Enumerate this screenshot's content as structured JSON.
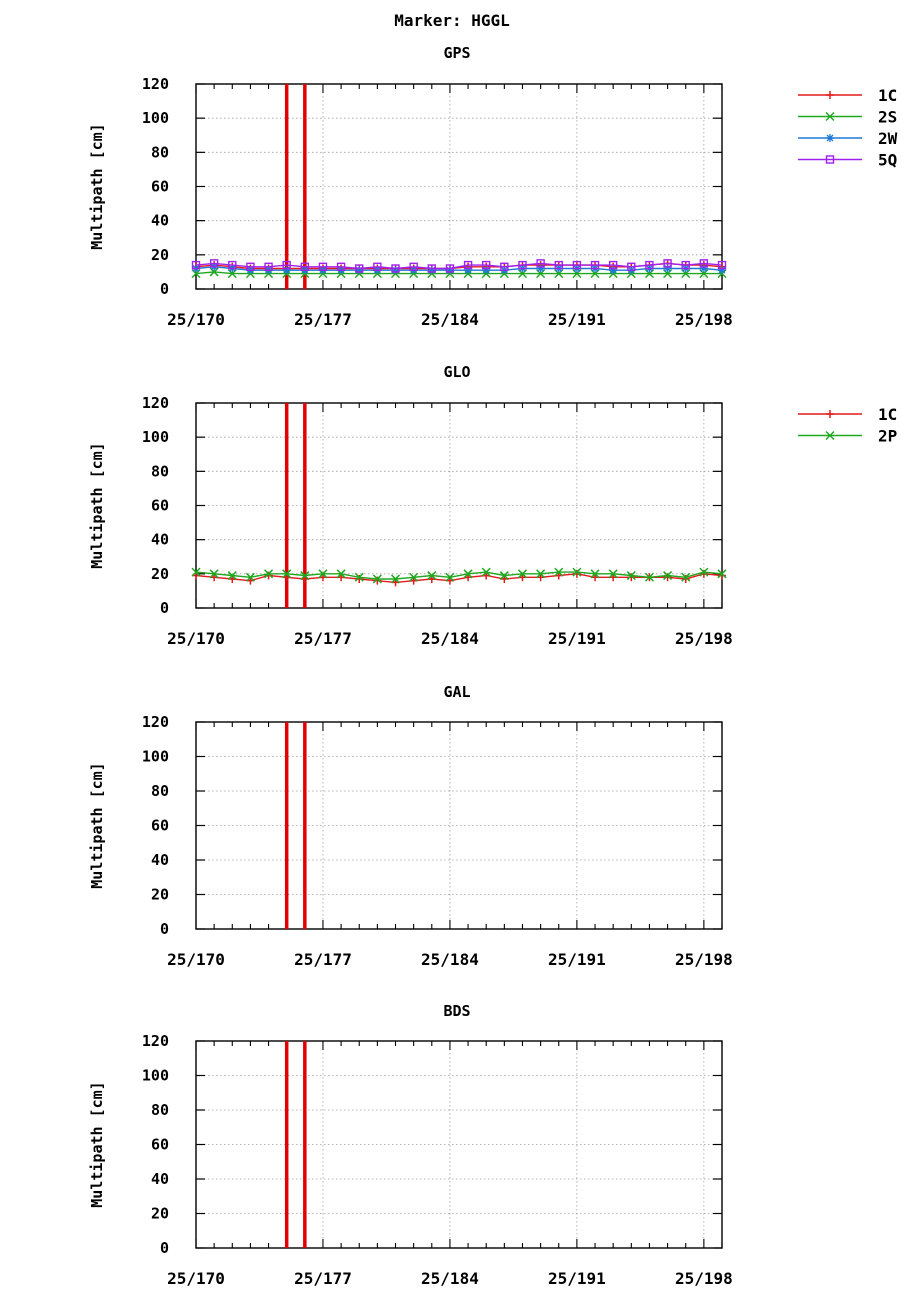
{
  "title": "Marker: HGGL",
  "colors": {
    "1C": "#e41a1c",
    "2S": "#1fa81f",
    "2W": "#1f78d8",
    "5Q": "#a020f0",
    "2P": "#1fa81f",
    "gap_marker": "#e00000",
    "grid": "#a0a0a0",
    "axis": "#000000"
  },
  "chart_data": [
    {
      "type": "line",
      "title": "GPS",
      "ylabel": "Multipath [cm]",
      "xlabel": "",
      "xlim": [
        170,
        199
      ],
      "ylim": [
        0,
        120
      ],
      "yticks": [
        0,
        20,
        40,
        60,
        80,
        100,
        120
      ],
      "xticks": [
        170,
        177,
        184,
        191,
        198
      ],
      "xtick_labels": [
        "25/170",
        "25/177",
        "25/184",
        "25/191",
        "25/198"
      ],
      "grid": true,
      "legend_position": "right",
      "vertical_markers": [
        175,
        176
      ],
      "x": [
        170,
        171,
        172,
        173,
        174,
        175,
        176,
        177,
        178,
        179,
        180,
        181,
        182,
        183,
        184,
        185,
        186,
        187,
        188,
        189,
        190,
        191,
        192,
        193,
        194,
        195,
        196,
        197,
        198,
        199
      ],
      "series": [
        {
          "name": "1C",
          "marker": "plus",
          "values": [
            13,
            14,
            13,
            12,
            12,
            12,
            12,
            12,
            12,
            12,
            12,
            12,
            12,
            12,
            12,
            13,
            13,
            13,
            14,
            14,
            14,
            14,
            14,
            13,
            13,
            14,
            15,
            14,
            14,
            13
          ]
        },
        {
          "name": "2S",
          "marker": "x",
          "values": [
            9,
            10,
            9,
            9,
            9,
            9,
            9,
            9,
            9,
            9,
            9,
            9,
            9,
            9,
            9,
            9,
            9,
            9,
            9,
            9,
            9,
            9,
            9,
            9,
            9,
            9,
            9,
            9,
            9,
            9
          ]
        },
        {
          "name": "2W",
          "marker": "star",
          "values": [
            12,
            13,
            12,
            11,
            11,
            11,
            11,
            11,
            11,
            11,
            11,
            11,
            11,
            11,
            11,
            11,
            11,
            11,
            12,
            12,
            12,
            12,
            12,
            11,
            11,
            12,
            12,
            12,
            12,
            11
          ]
        },
        {
          "name": "5Q",
          "marker": "square",
          "values": [
            14,
            15,
            14,
            13,
            13,
            14,
            13,
            13,
            13,
            12,
            13,
            12,
            13,
            12,
            12,
            14,
            14,
            13,
            14,
            15,
            14,
            14,
            14,
            14,
            13,
            14,
            15,
            14,
            15,
            14
          ]
        }
      ]
    },
    {
      "type": "line",
      "title": "GLO",
      "ylabel": "Multipath [cm]",
      "xlabel": "",
      "xlim": [
        170,
        199
      ],
      "ylim": [
        0,
        120
      ],
      "yticks": [
        0,
        20,
        40,
        60,
        80,
        100,
        120
      ],
      "xticks": [
        170,
        177,
        184,
        191,
        198
      ],
      "xtick_labels": [
        "25/170",
        "25/177",
        "25/184",
        "25/191",
        "25/198"
      ],
      "grid": true,
      "legend_position": "right",
      "vertical_markers": [
        175,
        176
      ],
      "x": [
        170,
        171,
        172,
        173,
        174,
        175,
        176,
        177,
        178,
        179,
        180,
        181,
        182,
        183,
        184,
        185,
        186,
        187,
        188,
        189,
        190,
        191,
        192,
        193,
        194,
        195,
        196,
        197,
        198,
        199
      ],
      "series": [
        {
          "name": "1C",
          "marker": "plus",
          "values": [
            19,
            18,
            17,
            16,
            19,
            18,
            17,
            18,
            18,
            17,
            16,
            15,
            16,
            17,
            16,
            18,
            19,
            17,
            18,
            18,
            19,
            20,
            18,
            18,
            18,
            18,
            18,
            17,
            20,
            19
          ]
        },
        {
          "name": "2P",
          "marker": "x",
          "values": [
            21,
            20,
            19,
            18,
            20,
            20,
            19,
            20,
            20,
            18,
            17,
            17,
            18,
            19,
            18,
            20,
            21,
            19,
            20,
            20,
            21,
            21,
            20,
            20,
            19,
            18,
            19,
            18,
            21,
            20
          ]
        }
      ]
    },
    {
      "type": "line",
      "title": "GAL",
      "ylabel": "Multipath [cm]",
      "xlabel": "",
      "xlim": [
        170,
        199
      ],
      "ylim": [
        0,
        120
      ],
      "yticks": [
        0,
        20,
        40,
        60,
        80,
        100,
        120
      ],
      "xticks": [
        170,
        177,
        184,
        191,
        198
      ],
      "xtick_labels": [
        "25/170",
        "25/177",
        "25/184",
        "25/191",
        "25/198"
      ],
      "grid": true,
      "legend_position": "right",
      "vertical_markers": [
        175,
        176
      ],
      "x": [],
      "series": []
    },
    {
      "type": "line",
      "title": "BDS",
      "ylabel": "Multipath [cm]",
      "xlabel": "",
      "xlim": [
        170,
        199
      ],
      "ylim": [
        0,
        120
      ],
      "yticks": [
        0,
        20,
        40,
        60,
        80,
        100,
        120
      ],
      "xticks": [
        170,
        177,
        184,
        191,
        198
      ],
      "xtick_labels": [
        "25/170",
        "25/177",
        "25/184",
        "25/191",
        "25/198"
      ],
      "grid": true,
      "legend_position": "right",
      "vertical_markers": [
        175,
        176
      ],
      "x": [],
      "series": []
    }
  ]
}
